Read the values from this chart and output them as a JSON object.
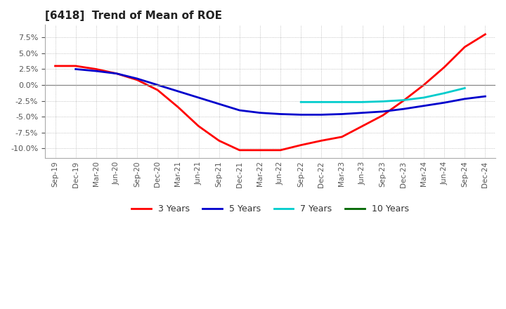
{
  "title": "[6418]  Trend of Mean of ROE",
  "title_fontsize": 11,
  "background_color": "#ffffff",
  "grid_color": "#aaaaaa",
  "x_tick_labels": [
    "Sep-19",
    "Dec-19",
    "Mar-20",
    "Jun-20",
    "Sep-20",
    "Dec-20",
    "Mar-21",
    "Jun-21",
    "Sep-21",
    "Dec-21",
    "Mar-22",
    "Jun-22",
    "Sep-22",
    "Dec-22",
    "Mar-23",
    "Jun-23",
    "Sep-23",
    "Dec-23",
    "Mar-24",
    "Jun-24",
    "Sep-24",
    "Dec-24"
  ],
  "ylim": [
    -0.115,
    0.095
  ],
  "yticks": [
    -0.1,
    -0.075,
    -0.05,
    -0.025,
    0.0,
    0.025,
    0.05,
    0.075
  ],
  "series": {
    "3 Years": {
      "color": "#ff0000",
      "values": [
        0.03,
        0.03,
        0.025,
        0.018,
        0.008,
        -0.008,
        -0.035,
        -0.065,
        -0.088,
        -0.103,
        -0.103,
        -0.103,
        -0.095,
        -0.088,
        -0.082,
        -0.065,
        -0.048,
        -0.025,
        0.0,
        0.028,
        0.06,
        0.08
      ]
    },
    "5 Years": {
      "color": "#0000cc",
      "values": [
        null,
        0.025,
        0.022,
        0.018,
        0.01,
        0.0,
        -0.01,
        -0.02,
        -0.03,
        -0.04,
        -0.044,
        -0.046,
        -0.047,
        -0.047,
        -0.046,
        -0.044,
        -0.042,
        -0.038,
        -0.033,
        -0.028,
        -0.022,
        -0.018
      ]
    },
    "7 Years": {
      "color": "#00cccc",
      "values": [
        null,
        null,
        null,
        null,
        null,
        null,
        null,
        null,
        null,
        null,
        null,
        null,
        -0.027,
        -0.027,
        -0.027,
        -0.027,
        -0.026,
        -0.024,
        -0.02,
        -0.013,
        -0.005,
        null
      ]
    },
    "10 Years": {
      "color": "#006600",
      "values": [
        null,
        null,
        null,
        null,
        null,
        null,
        null,
        null,
        null,
        null,
        null,
        null,
        null,
        null,
        null,
        null,
        null,
        null,
        null,
        null,
        null,
        null
      ]
    }
  },
  "legend_loc": "lower center",
  "legend_ncol": 4
}
